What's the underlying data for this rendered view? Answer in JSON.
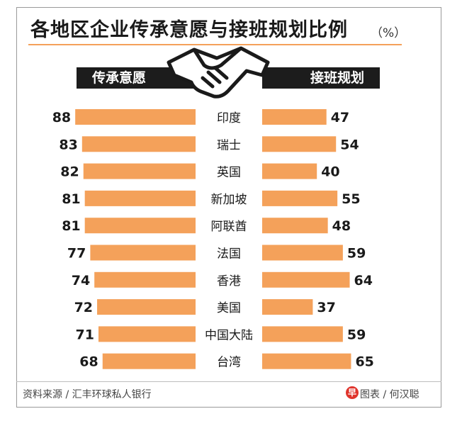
{
  "title": "各地区企业传承意愿与接班规划比例",
  "unit": "（%）",
  "left_header": "传承意愿",
  "right_header": "接班规划",
  "source": "资料来源 / 汇丰环球私人银行",
  "credit": "图表 / 何汉聪",
  "logo_text": "早",
  "icon": "handshake-icon",
  "colors": {
    "bar": "#f4a15a",
    "header": "#1c1c1c",
    "text": "#1a1a1a"
  },
  "chart_data": {
    "type": "bar",
    "orientation": "horizontal-butterfly",
    "categories": [
      "印度",
      "瑞士",
      "英国",
      "新加坡",
      "阿联酋",
      "法国",
      "香港",
      "美国",
      "中国大陆",
      "台湾"
    ],
    "series": [
      {
        "name": "传承意愿",
        "side": "left",
        "values": [
          88,
          83,
          82,
          81,
          81,
          77,
          74,
          72,
          71,
          68
        ]
      },
      {
        "name": "接班规划",
        "side": "right",
        "values": [
          47,
          54,
          40,
          55,
          48,
          59,
          64,
          37,
          59,
          65
        ]
      }
    ]
  }
}
